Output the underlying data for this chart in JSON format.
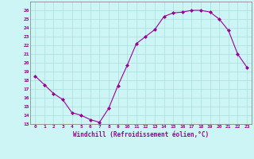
{
  "x": [
    0,
    1,
    2,
    3,
    4,
    5,
    6,
    7,
    8,
    9,
    10,
    11,
    12,
    13,
    14,
    15,
    16,
    17,
    18,
    19,
    20,
    21,
    22,
    23
  ],
  "y": [
    18.5,
    17.5,
    16.5,
    15.8,
    14.3,
    14.0,
    13.5,
    13.2,
    14.8,
    17.4,
    19.7,
    22.2,
    23.0,
    23.8,
    25.3,
    25.7,
    25.8,
    26.0,
    26.0,
    25.8,
    25.0,
    23.7,
    21.0,
    19.5
  ],
  "line_color": "#990099",
  "marker": "D",
  "marker_size": 2,
  "bg_color": "#cef5f5",
  "grid_color": "#aadddd",
  "xlabel": "Windchill (Refroidissement éolien,°C)",
  "xlabel_color": "#990099",
  "tick_color": "#990099",
  "xlim": [
    -0.5,
    23.5
  ],
  "ylim": [
    13,
    27
  ],
  "yticks": [
    13,
    14,
    15,
    16,
    17,
    18,
    19,
    20,
    21,
    22,
    23,
    24,
    25,
    26
  ],
  "xticks": [
    0,
    1,
    2,
    3,
    4,
    5,
    6,
    7,
    8,
    9,
    10,
    11,
    12,
    13,
    14,
    15,
    16,
    17,
    18,
    19,
    20,
    21,
    22,
    23
  ]
}
